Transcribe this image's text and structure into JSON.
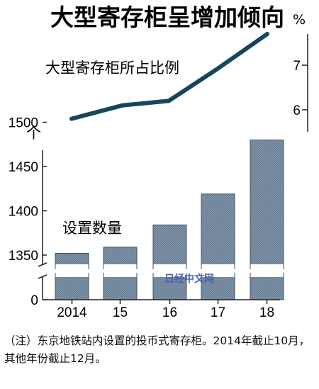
{
  "chart_data": {
    "title": "大型寄存柜呈增加倾向",
    "line": {
      "type": "line",
      "label": "大型寄存柜所占比例",
      "unit": "%",
      "x": [
        "2014",
        "15",
        "16",
        "17",
        "18"
      ],
      "values": [
        5.8,
        6.1,
        6.2,
        6.9,
        7.7
      ],
      "yticks": [
        "7",
        "6"
      ],
      "color": "#16465e"
    },
    "bar": {
      "type": "bar",
      "label": "设置数量",
      "unit": "个",
      "categories": [
        "2014",
        "15",
        "16",
        "17",
        "18"
      ],
      "values": [
        1352,
        1359,
        1384,
        1419,
        1480
      ],
      "yticks": [
        "1500",
        "1450",
        "1400",
        "1350",
        "0"
      ],
      "ylim": [
        1325,
        1505
      ],
      "axis_break": true,
      "color": "#7388a0"
    }
  },
  "note": "（注）东京地铁站内设置的投币式寄存柜。2014年截止10月，其他年份截止12月。",
  "watermark": "日经中文网"
}
